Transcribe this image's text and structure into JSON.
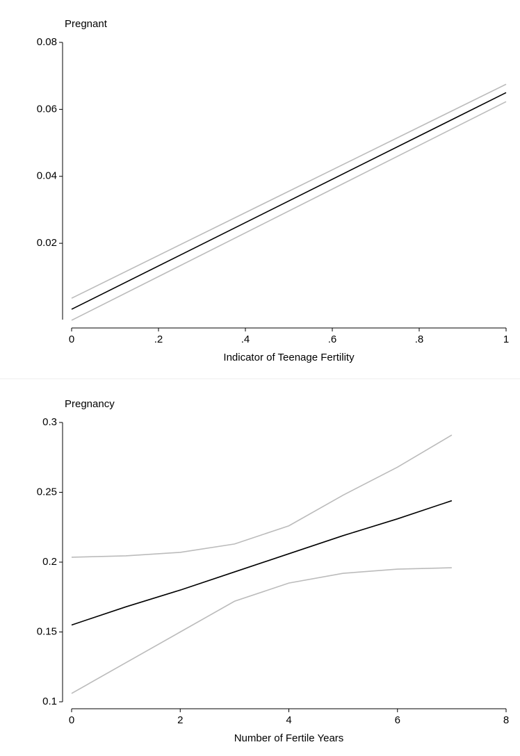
{
  "chart_data": [
    {
      "type": "line",
      "ylabel": "Pregnant",
      "xlabel": "Indicator of Teenage Fertility",
      "x": [
        0,
        1
      ],
      "series": [
        {
          "color": "#bbbbbb",
          "values": [
            0.0036,
            0.0675
          ]
        },
        {
          "color": "#000000",
          "values": [
            0.0003,
            0.065
          ]
        },
        {
          "color": "#bbbbbb",
          "values": [
            -0.003,
            0.0623
          ]
        }
      ],
      "xlim": [
        0,
        1
      ],
      "xticks": [
        0,
        {
          "value": 0.2,
          "label": ".2"
        },
        {
          "value": 0.4,
          "label": ".4"
        },
        {
          "value": 0.6,
          "label": ".6"
        },
        {
          "value": 0.8,
          "label": ".8"
        },
        1
      ],
      "ylim": [
        -0.0028,
        0.08
      ],
      "yticks": [
        0.02,
        0.04,
        0.06,
        {
          "value": 0.08,
          "label": "0.08"
        }
      ]
    },
    {
      "type": "line",
      "ylabel": "Pregnancy",
      "xlabel": "Number of Fertile Years",
      "x": [
        0,
        1,
        2,
        3,
        4,
        5,
        6,
        7
      ],
      "series": [
        {
          "color": "#bbbbbb",
          "values": [
            0.2035,
            0.2045,
            0.207,
            0.213,
            0.226,
            0.248,
            0.268,
            0.291
          ]
        },
        {
          "color": "#000000",
          "values": [
            0.155,
            0.168,
            0.18,
            0.193,
            0.206,
            0.219,
            0.231,
            0.244
          ]
        },
        {
          "color": "#bbbbbb",
          "values": [
            0.106,
            0.128,
            0.15,
            0.172,
            0.185,
            0.192,
            0.195,
            0.196
          ]
        }
      ],
      "xlim": [
        0,
        8
      ],
      "xticks": [
        0,
        2,
        4,
        6,
        8
      ],
      "ylim": [
        0.1,
        0.3
      ],
      "yticks": [
        0.1,
        0.15,
        0.2,
        0.25,
        0.3
      ]
    }
  ]
}
